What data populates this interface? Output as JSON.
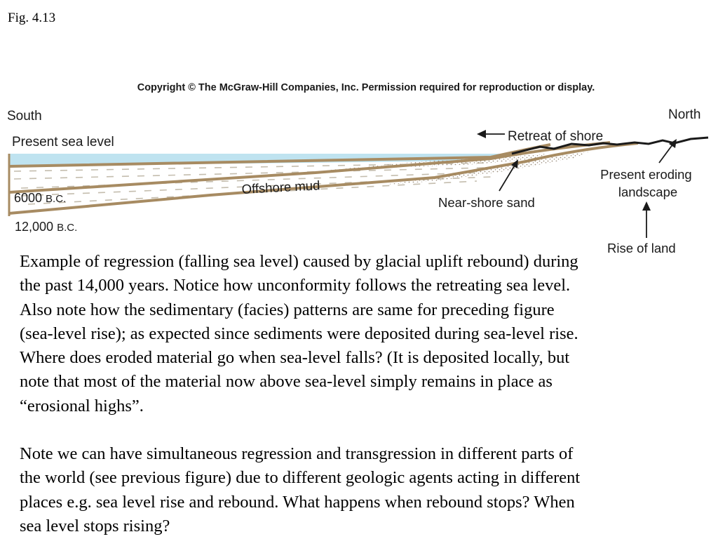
{
  "figure_label": "Fig. 4.13",
  "diagram": {
    "copyright": "Copyright © The McGraw-Hill Companies, Inc. Permission required for reproduction or display.",
    "labels": {
      "south": "South",
      "north": "North",
      "present_sea_level": "Present sea level",
      "retreat_of_shore": "Retreat of shore",
      "offshore_mud": "Offshore mud",
      "near_shore_sand": "Near-shore sand",
      "present_eroding_line1": "Present eroding",
      "present_eroding_line2": "landscape",
      "rise_of_land": "Rise of land",
      "bc_6000_num": "6000 ",
      "bc_6000_era": "B.C.",
      "bc_12000_num": "12,000 ",
      "bc_12000_era": "B.C."
    },
    "colors": {
      "water": "#bfe3f0",
      "layer_line": "#a78b62",
      "sand_dots": "#9c8f7e",
      "mud_dash": "#c4bdae",
      "land": "#1a1a1a"
    }
  },
  "caption": {
    "paragraph1": "Example of regression (falling sea level) caused by glacial uplift rebound) during\nthe past 14,000 years. Notice how unconformity follows the retreating sea level.\nAlso note how the sedimentary (facies) patterns are same for preceding figure\n(sea-level rise); as expected since sediments were deposited during sea-level rise.\nWhere does eroded material go when sea-level falls? (It is deposited locally, but\nnote that most of the material now above sea-level simply remains in place as\n“erosional highs”.",
    "paragraph2": "Note we can have simultaneous regression and transgression in different parts of\nthe world (see previous figure) due to different geologic agents acting in different\nplaces e.g. sea level rise and rebound. What happens when rebound stops? When\nsea level stops rising?"
  }
}
